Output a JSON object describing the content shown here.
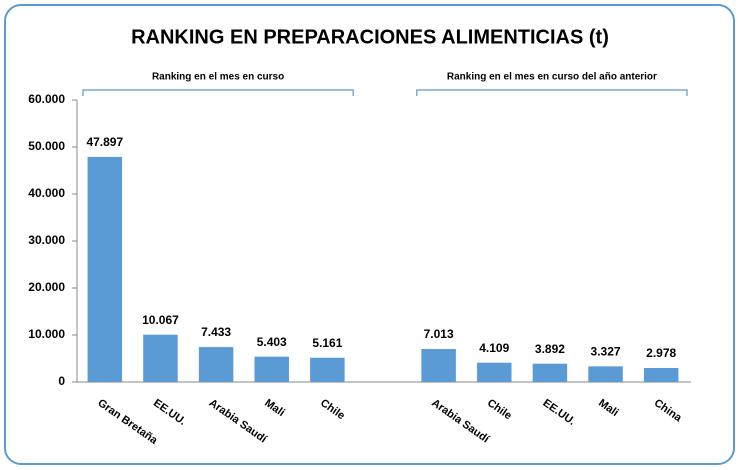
{
  "chart_data": {
    "type": "bar",
    "title": "RANKING EN PREPARACIONES ALIMENTICIAS (t)",
    "annotations": [
      "Ranking en el mes en curso",
      "Ranking en el mes en curso del año anterior"
    ],
    "categories": [
      "Gran Bretaña",
      "EE.UU.",
      "Arabia Saudí",
      "Mali",
      "Chile",
      null,
      "Arabia Saudí",
      "Chile",
      "EE.UU.",
      "Mali",
      "China"
    ],
    "values": [
      47897,
      10067,
      7433,
      5403,
      5161,
      null,
      7013,
      4109,
      3892,
      3327,
      2978
    ],
    "value_labels": [
      "47.897",
      "10.067",
      "7.433",
      "5.403",
      "5.161",
      null,
      "7.013",
      "4.109",
      "3.892",
      "3.327",
      "2.978"
    ],
    "color": "#5b9bd5",
    "ylim": [
      0,
      60000
    ],
    "yticks": [
      0,
      {
        "value": 10000,
        "label": "10.000"
      },
      {
        "value": 20000,
        "label": "20.000"
      },
      {
        "value": 30000,
        "label": "30.000"
      },
      {
        "value": 40000,
        "label": "40.000"
      },
      {
        "value": 50000,
        "label": "50.000"
      },
      {
        "value": 60000,
        "label": "60.000"
      }
    ],
    "grid": false
  }
}
